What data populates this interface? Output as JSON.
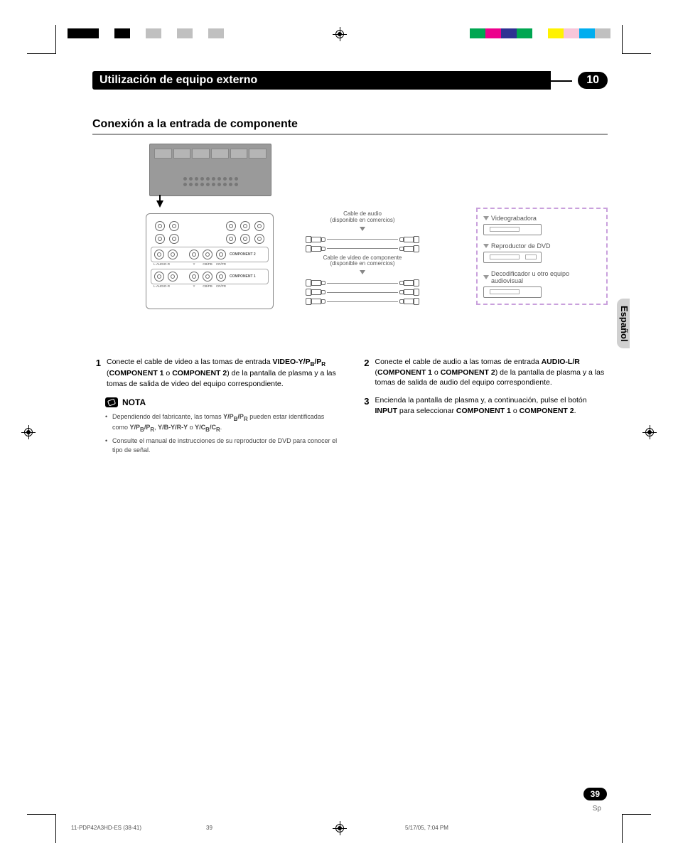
{
  "chapter": {
    "title": "Utilización de equipo externo",
    "number": "10"
  },
  "subheading": "Conexión a la entrada de componente",
  "diagram": {
    "audio_cable_label": "Cable de audio",
    "audio_cable_sub": "(disponible en comercios)",
    "video_cable_label": "Cable de video de componente",
    "video_cable_sub": "(disponible en comercios)",
    "devices": {
      "vcr": "Videograbadora",
      "dvd": "Reproductor de DVD",
      "decoder": "Decodificador u otro equipo audiovisual"
    },
    "jacks": {
      "l_audio_r": "L-AUDIO-R",
      "y": "Y",
      "cb": "CB/PB",
      "cr": "CR/PR",
      "comp1": "COMPONENT 1",
      "comp2": "COMPONENT 2"
    }
  },
  "steps": {
    "s1": {
      "num": "1",
      "pre": "Conecte el cable de video a las tomas de entrada ",
      "b1": "VIDEO-Y/P",
      "b1sub": "B",
      "b1mid": "/P",
      "b1sub2": "R",
      "mid1": " (",
      "b2": "COMPONENT 1",
      "mid2": " o ",
      "b3": "COMPONENT 2",
      "post": ") de la pantalla de plasma y a las tomas de salida de video del equipo correspondiente."
    },
    "s2": {
      "num": "2",
      "pre": "Conecte el cable de audio a las tomas de entrada ",
      "b1": "AUDIO-L/R",
      "mid1": " (",
      "b2": "COMPONENT 1",
      "mid2": " o ",
      "b3": "COMPONENT 2",
      "post": ") de la pantalla de plasma y a las tomas de salida de audio del equipo correspondiente."
    },
    "s3": {
      "num": "3",
      "pre": "Encienda la pantalla de plasma y, a continuación, pulse el botón ",
      "b1": "INPUT",
      "mid1": " para seleccionar ",
      "b2": "COMPONENT 1",
      "mid2": " o ",
      "b3": "COMPONENT 2",
      "post": "."
    }
  },
  "nota": {
    "label": "NOTA",
    "n1": {
      "pre": "Dependiendo del fabricante, las tomas ",
      "b1": "Y/P",
      "sub1": "B",
      "mid1": "/P",
      "sub2": "R",
      "mid2": " pueden estar identificadas como ",
      "b2": "Y/P",
      "sub3": "B",
      "mid3": "/P",
      "sub4": "R",
      "mid4": ", ",
      "b3": "Y/B-Y/R-Y",
      "mid5": " o ",
      "b4": "Y/C",
      "sub5": "B",
      "mid6": "/C",
      "sub6": "R",
      "post": "."
    },
    "n2": "Consulte el manual de instrucciones de su reproductor de DVD para conocer el tipo de señal."
  },
  "side": "Español",
  "page_number": "39",
  "page_lang": "Sp",
  "footer": {
    "file": "11-PDP42A3HD-ES (38-41)",
    "page": "39",
    "datetime": "5/17/05, 7:04 PM"
  },
  "colors": {
    "top_left_bar": [
      "#000",
      "#000",
      "#fff",
      "#000",
      "#fff",
      "#c0c0c0",
      "#fff",
      "#c0c0c0",
      "#fff",
      "#c0c0c0"
    ],
    "top_right_bar": [
      "#00a651",
      "#ec008c",
      "#2e3192",
      "#00a651",
      "#fff",
      "#fff200",
      "#f7c6d9",
      "#00aeef",
      "#c0c0c0"
    ]
  }
}
